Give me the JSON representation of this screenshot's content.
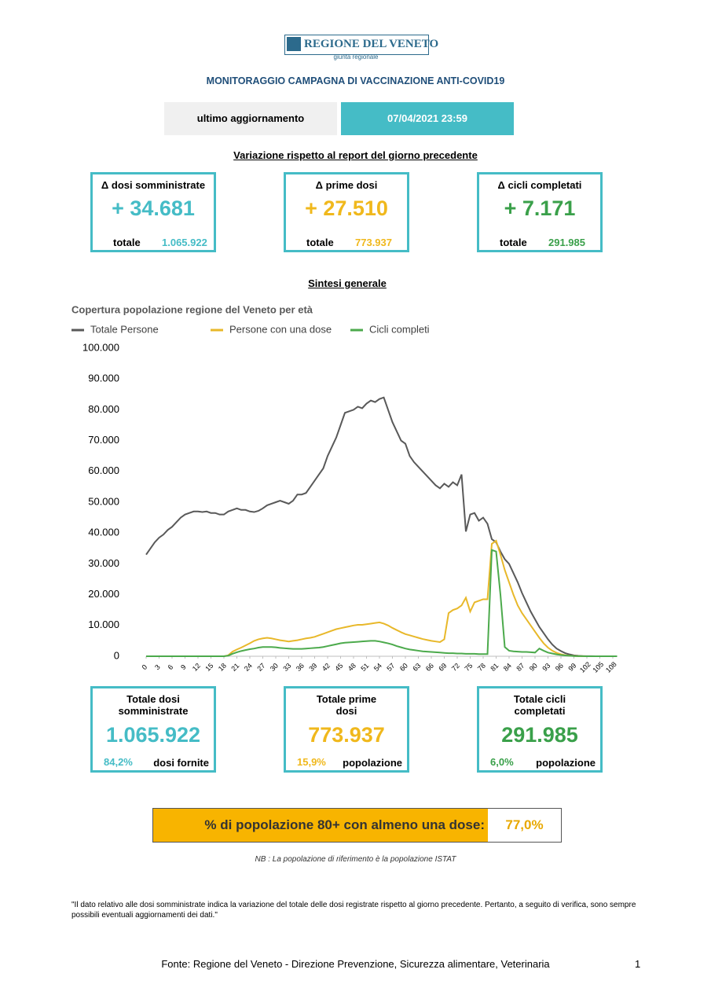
{
  "header": {
    "logo": "REGIONE DEL VENETO",
    "logo_sub": "giunta regionale",
    "title": "MONITORAGGIO CAMPAGNA DI VACCINAZIONE ANTI-COVID19",
    "update_label": "ultimo aggiornamento",
    "update_value": "07/04/2021 23:59"
  },
  "variation": {
    "title": "Variazione rispetto al report del giorno precedente",
    "cards": [
      {
        "label": "Δ dosi somministrate",
        "value": "+ 34.681",
        "total_label": "totale",
        "total": "1.065.922"
      },
      {
        "label": "Δ prime dosi",
        "value": "+ 27.510",
        "total_label": "totale",
        "total": "773.937"
      },
      {
        "label": "Δ cicli completati",
        "value": "+ 7.171",
        "total_label": "totale",
        "total": "291.985"
      }
    ]
  },
  "summary_title": "Sintesi generale",
  "chart_data": {
    "type": "line",
    "title": "Copertura popolazione regione del Veneto per età",
    "x": [
      0,
      1,
      2,
      3,
      4,
      5,
      6,
      7,
      8,
      9,
      10,
      11,
      12,
      13,
      14,
      15,
      16,
      17,
      18,
      19,
      20,
      21,
      22,
      23,
      24,
      25,
      26,
      27,
      28,
      29,
      30,
      31,
      32,
      33,
      34,
      35,
      36,
      37,
      38,
      39,
      40,
      41,
      42,
      43,
      44,
      45,
      46,
      47,
      48,
      49,
      50,
      51,
      52,
      53,
      54,
      55,
      56,
      57,
      58,
      59,
      60,
      61,
      62,
      63,
      64,
      65,
      66,
      67,
      68,
      69,
      70,
      71,
      72,
      73,
      74,
      75,
      76,
      77,
      78,
      79,
      80,
      81,
      82,
      83,
      84,
      85,
      86,
      87,
      88,
      89,
      90,
      91,
      92,
      93,
      94,
      95,
      96,
      97,
      98,
      99,
      100,
      101,
      102,
      103,
      104,
      105,
      106,
      107,
      108,
      109
    ],
    "xlim": [
      0,
      109
    ],
    "xticks": [
      0,
      3,
      6,
      9,
      12,
      15,
      18,
      21,
      24,
      27,
      30,
      33,
      36,
      39,
      42,
      45,
      48,
      51,
      54,
      57,
      60,
      63,
      66,
      69,
      72,
      75,
      78,
      81,
      84,
      87,
      90,
      93,
      96,
      99,
      102,
      105,
      108
    ],
    "ylim": [
      0,
      100000
    ],
    "yticks": [
      0,
      {
        "value": 10000,
        "label": "10.000"
      },
      {
        "value": 20000,
        "label": "20.000"
      },
      {
        "value": 30000,
        "label": "30.000"
      },
      {
        "value": 40000,
        "label": "40.000"
      },
      {
        "value": 50000,
        "label": "50.000"
      },
      {
        "value": 60000,
        "label": "60.000"
      },
      {
        "value": 70000,
        "label": "70.000"
      },
      {
        "value": 80000,
        "label": "80.000"
      },
      {
        "value": 90000,
        "label": "90.000"
      },
      {
        "value": 100000,
        "label": "100.000"
      }
    ],
    "grid": false,
    "series": [
      {
        "name": "Totale Persone",
        "color": "#595959",
        "values": [
          33000,
          35000,
          37000,
          38500,
          39500,
          41000,
          42000,
          43500,
          45000,
          46000,
          46500,
          47000,
          47000,
          46800,
          47000,
          46500,
          46500,
          46000,
          46000,
          47000,
          47500,
          48000,
          47500,
          47500,
          47000,
          46800,
          47200,
          48000,
          49000,
          49500,
          50000,
          50500,
          50000,
          49500,
          50500,
          52500,
          52500,
          53000,
          55000,
          57000,
          59000,
          61000,
          65000,
          68000,
          71000,
          75000,
          79000,
          79500,
          80000,
          81000,
          80500,
          82000,
          83000,
          82500,
          83500,
          84000,
          80000,
          76000,
          73000,
          70000,
          69000,
          65000,
          63000,
          61500,
          60000,
          58500,
          57000,
          55500,
          54500,
          56000,
          55000,
          56500,
          55500,
          59000,
          40500,
          46000,
          46500,
          44000,
          45000,
          43000,
          38000,
          37000,
          34000,
          31500,
          30000,
          27000,
          24000,
          20500,
          17500,
          14500,
          12000,
          9500,
          7500,
          5500,
          3800,
          2500,
          1700,
          1000,
          600,
          300,
          150,
          80,
          40,
          20,
          10,
          5,
          2,
          1,
          0,
          0
        ]
      },
      {
        "name": "Persone con una dose",
        "color": "#e8b82a",
        "values": [
          0,
          0,
          0,
          0,
          0,
          0,
          0,
          0,
          0,
          0,
          0,
          0,
          0,
          0,
          0,
          0,
          0,
          0,
          0,
          300,
          1500,
          2200,
          2800,
          3500,
          4200,
          5000,
          5500,
          5800,
          6000,
          5800,
          5500,
          5200,
          5000,
          4800,
          5000,
          5200,
          5500,
          5800,
          6000,
          6300,
          6800,
          7300,
          7800,
          8300,
          8800,
          9100,
          9400,
          9700,
          10000,
          10200,
          10200,
          10400,
          10600,
          10800,
          11000,
          10600,
          10000,
          9200,
          8500,
          7800,
          7200,
          6800,
          6400,
          6000,
          5600,
          5300,
          5000,
          4800,
          4600,
          5500,
          14000,
          15000,
          15500,
          16500,
          19000,
          14500,
          17500,
          18000,
          18500,
          18500,
          36500,
          37500,
          33000,
          28000,
          24000,
          20000,
          16500,
          14000,
          12000,
          10000,
          8000,
          6000,
          4200,
          2800,
          1800,
          1100,
          650,
          350,
          180,
          90,
          40,
          20,
          10,
          5,
          2,
          1,
          0,
          0,
          0,
          0
        ]
      },
      {
        "name": "Cicli completi",
        "color": "#4caa4c",
        "values": [
          0,
          0,
          0,
          0,
          0,
          0,
          0,
          0,
          0,
          0,
          0,
          0,
          0,
          0,
          0,
          0,
          0,
          0,
          0,
          200,
          800,
          1300,
          1700,
          2000,
          2300,
          2500,
          2800,
          3000,
          3000,
          3000,
          2900,
          2700,
          2600,
          2500,
          2400,
          2400,
          2400,
          2500,
          2600,
          2700,
          2800,
          3000,
          3300,
          3600,
          3900,
          4200,
          4400,
          4500,
          4600,
          4700,
          4800,
          4900,
          5000,
          5000,
          4800,
          4500,
          4200,
          3800,
          3300,
          2900,
          2500,
          2200,
          2000,
          1800,
          1600,
          1500,
          1400,
          1300,
          1200,
          1100,
          1000,
          1000,
          900,
          900,
          800,
          800,
          800,
          700,
          700,
          700,
          34500,
          34000,
          20000,
          3000,
          1800,
          1600,
          1500,
          1400,
          1400,
          1300,
          1200,
          2500,
          1800,
          1200,
          900,
          600,
          400,
          250,
          150,
          80,
          40,
          20,
          10,
          5,
          0,
          0,
          0,
          0,
          0,
          0
        ]
      }
    ]
  },
  "totals": [
    {
      "label": "Totale dosi somministrate",
      "value": "1.065.922",
      "pct": "84,2%",
      "pct_label": "dosi fornite"
    },
    {
      "label": "Totale prime dosi",
      "value": "773.937",
      "pct": "15,9%",
      "pct_label": "popolazione"
    },
    {
      "label": "Totale cicli completati",
      "value": "291.985",
      "pct": "6,0%",
      "pct_label": "popolazione"
    }
  ],
  "banner": {
    "label": "% di popolazione 80+ con almeno una dose:",
    "value": "77,0%"
  },
  "note": "NB : La popolazione di riferimento è la popolazione ISTAT",
  "disclaimer": "\"Il dato relativo alle dosi somministrate indica la variazione del totale delle dosi registrate rispetto al giorno precedente. Pertanto, a seguito di verifica, sono sempre possibili eventuali aggiornamenti dei dati.\"",
  "footer": "Fonte: Regione del Veneto - Direzione Prevenzione, Sicurezza alimentare, Veterinaria",
  "page": "1"
}
